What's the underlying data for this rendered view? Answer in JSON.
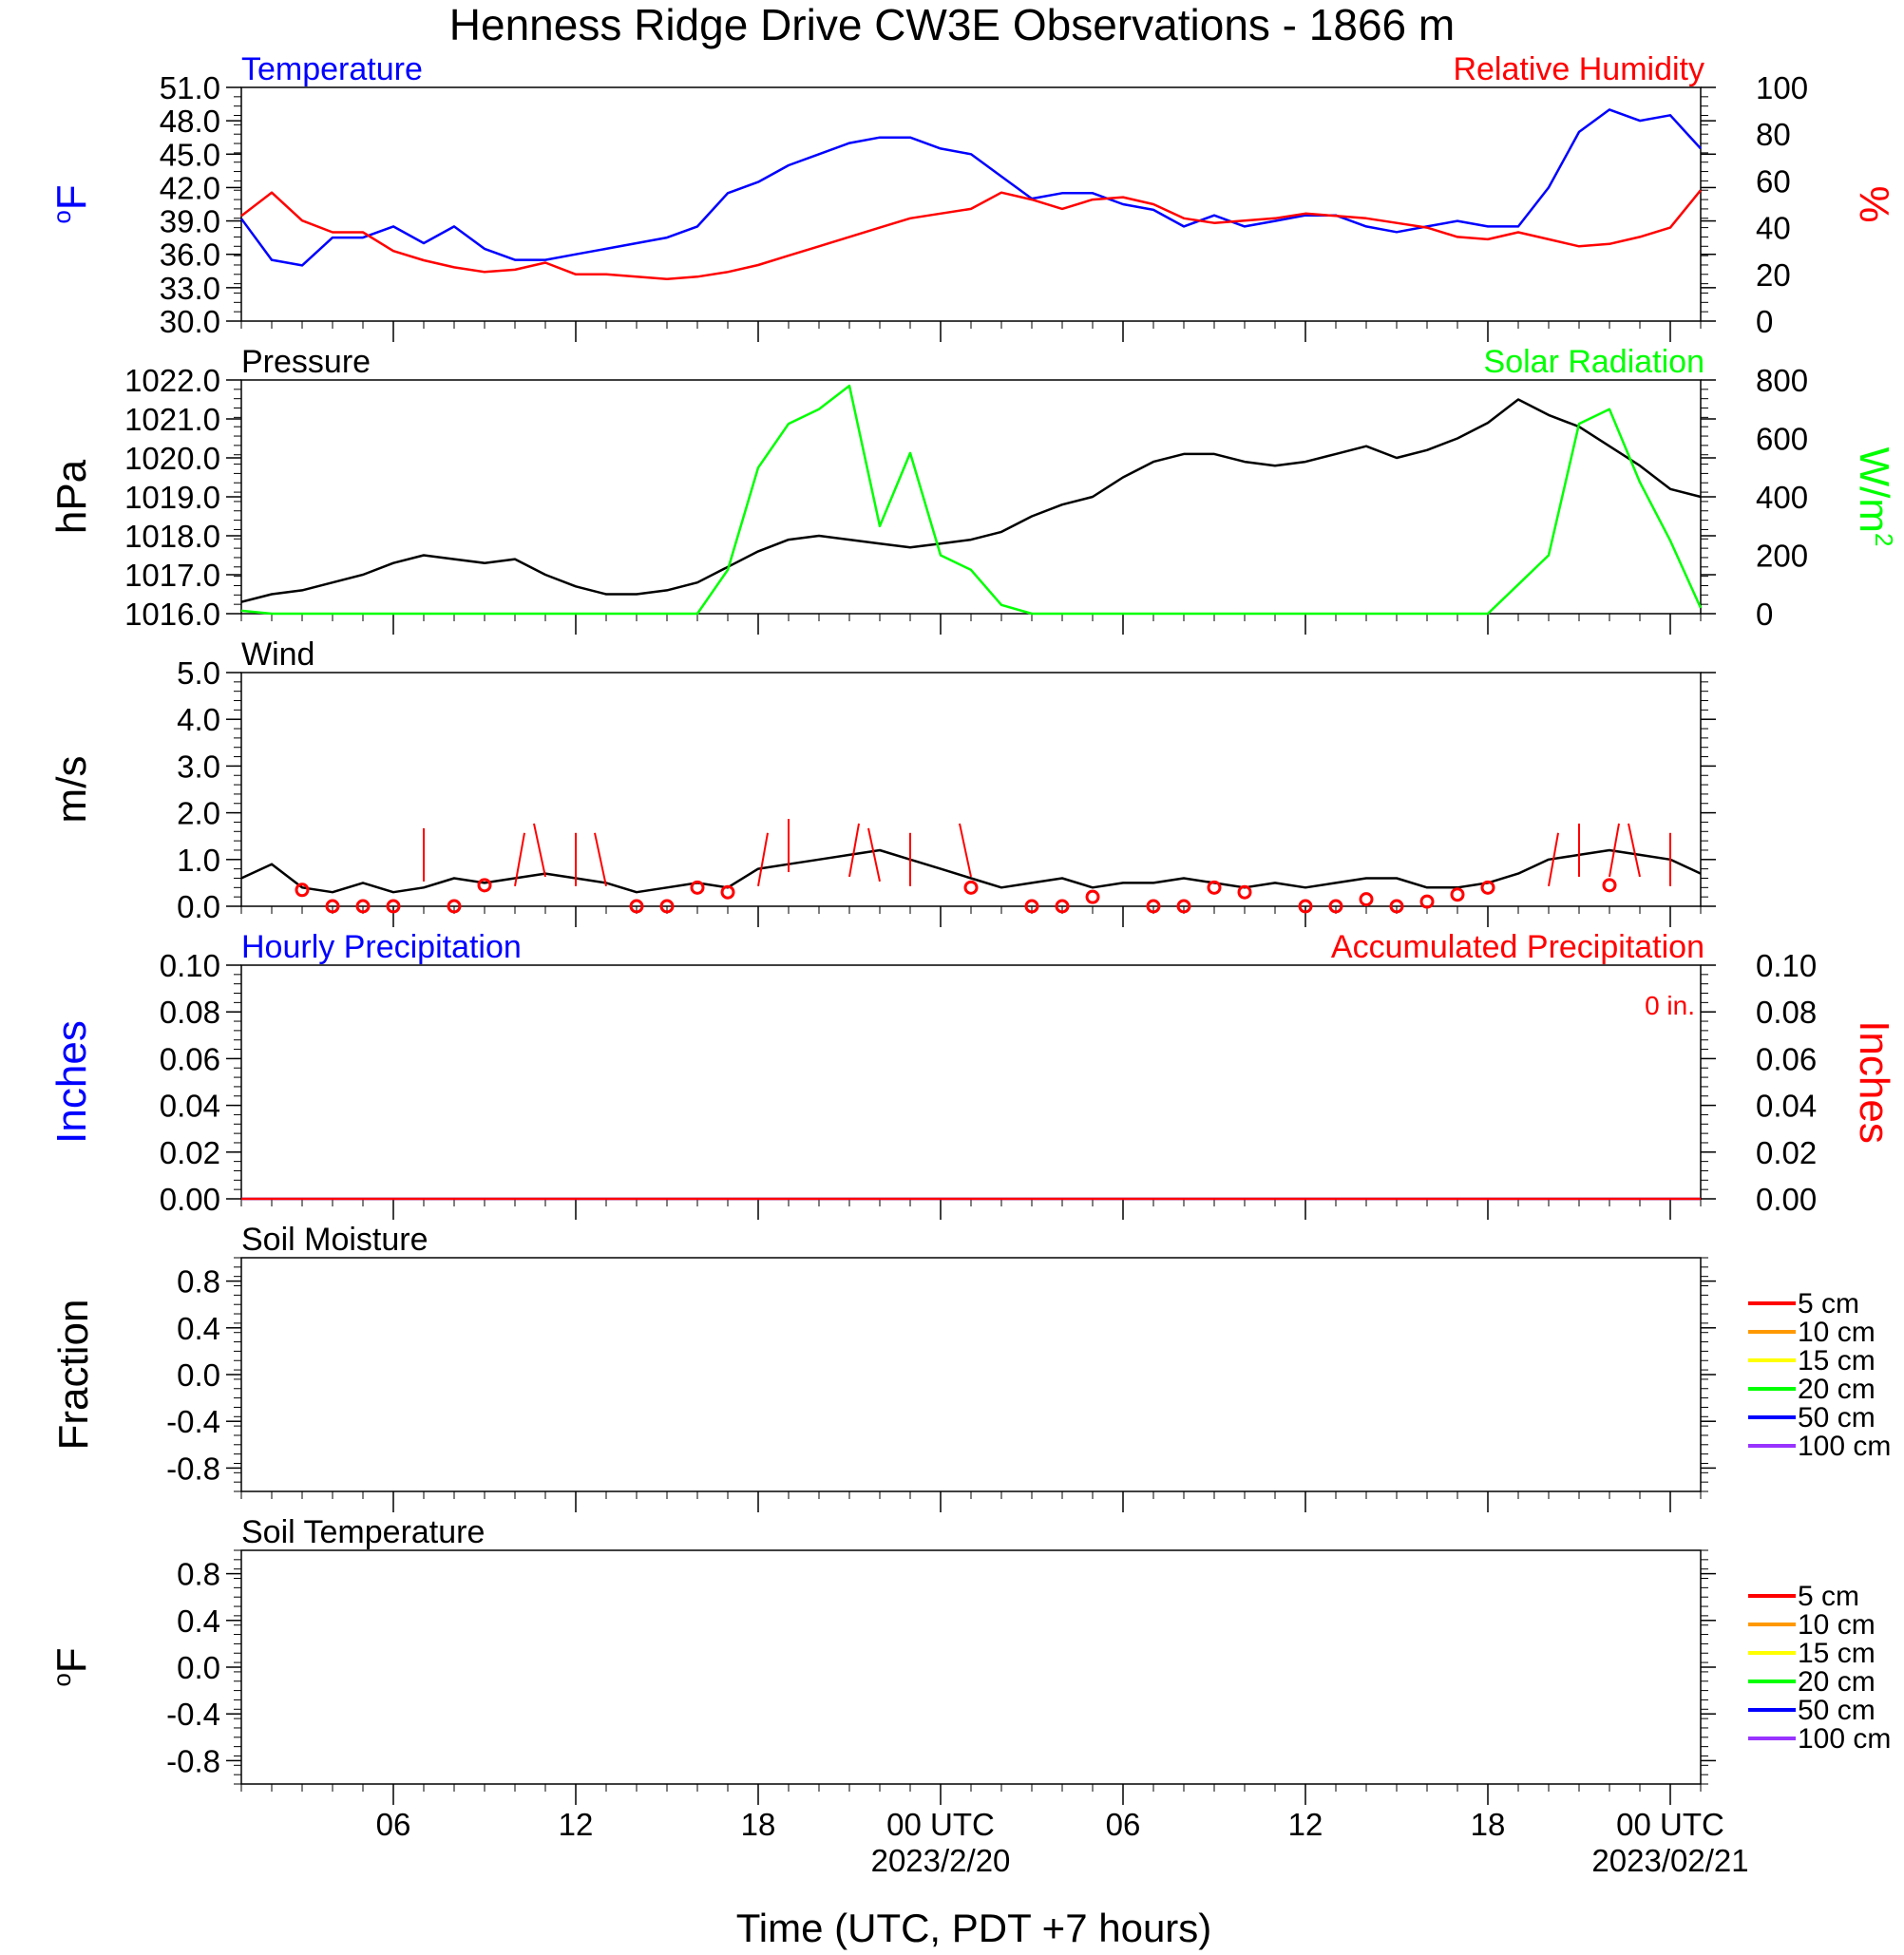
{
  "title": "Henness Ridge Drive CW3E Observations - 1866 m",
  "xlabel": "Time (UTC, PDT +7 hours)",
  "x_ticks": [
    "06",
    "12",
    "18",
    "00 UTC",
    "06",
    "12",
    "18",
    "00 UTC"
  ],
  "x_dates": [
    "2023/2/20",
    "2023/02/21"
  ],
  "colors": {
    "black": "#000000",
    "blue": "#0000ff",
    "red": "#ff0000",
    "green": "#00ff00",
    "orange": "#ff9900",
    "yellow": "#ffff00",
    "purple": "#9933ff"
  },
  "chart_data": [
    {
      "type": "line",
      "name": "temperature-rh-panel",
      "left_title": "Temperature",
      "right_title": "Relative Humidity",
      "ylabel": "oF",
      "ylabel_right": "%",
      "ylim": [
        30,
        51
      ],
      "ylim_right": [
        0,
        100
      ],
      "yticks": [
        "51.0",
        "48.0",
        "45.0",
        "42.0",
        "39.0",
        "36.0",
        "33.0",
        "30.0"
      ],
      "yticks_right": [
        "100",
        "80",
        "60",
        "40",
        "20",
        "0"
      ],
      "x_hours": [
        1,
        2,
        3,
        4,
        5,
        6,
        7,
        8,
        9,
        10,
        11,
        12,
        13,
        14,
        15,
        16,
        17,
        18,
        19,
        20,
        21,
        22,
        23,
        24,
        25,
        26,
        27,
        28,
        29,
        30,
        31,
        32,
        33,
        34,
        35,
        36,
        37,
        38,
        39,
        40,
        41,
        42,
        43,
        44,
        45,
        46,
        47,
        48,
        49
      ],
      "series": [
        {
          "name": "Temperature",
          "axis": "left",
          "color": "blue",
          "values": [
            39.2,
            35.5,
            35.0,
            37.5,
            37.5,
            38.5,
            37.0,
            38.5,
            36.5,
            35.5,
            35.5,
            36.0,
            36.5,
            37.0,
            37.5,
            38.5,
            41.5,
            42.5,
            44.0,
            45.0,
            46.0,
            46.5,
            46.5,
            45.5,
            45.0,
            43.0,
            41.0,
            41.5,
            41.5,
            40.5,
            40.0,
            38.5,
            39.5,
            38.5,
            39.0,
            39.5,
            39.5,
            38.5,
            38.0,
            38.5,
            39.0,
            38.5,
            38.5,
            42.0,
            47.0,
            49.0,
            48.0,
            48.5,
            45.5
          ]
        },
        {
          "name": "Relative Humidity",
          "axis": "right",
          "color": "red",
          "values": [
            45,
            55,
            43,
            38,
            38,
            30,
            26,
            23,
            21,
            22,
            25,
            20,
            20,
            19,
            18,
            19,
            21,
            24,
            28,
            32,
            36,
            40,
            44,
            46,
            48,
            55,
            52,
            48,
            52,
            53,
            50,
            44,
            42,
            43,
            44,
            46,
            45,
            44,
            42,
            40,
            36,
            35,
            38,
            35,
            32,
            33,
            36,
            40,
            56
          ]
        }
      ]
    },
    {
      "type": "line",
      "name": "pressure-solar-panel",
      "left_title": "Pressure",
      "right_title": "Solar Radiation",
      "ylabel": "hPa",
      "ylabel_right": "W/m2",
      "ylim": [
        1016,
        1022
      ],
      "ylim_right": [
        0,
        800
      ],
      "yticks": [
        "1022.0",
        "1021.0",
        "1020.0",
        "1019.0",
        "1018.0",
        "1017.0",
        "1016.0"
      ],
      "yticks_right": [
        "800",
        "600",
        "400",
        "200",
        "0"
      ],
      "x_hours": [
        1,
        2,
        3,
        4,
        5,
        6,
        7,
        8,
        9,
        10,
        11,
        12,
        13,
        14,
        15,
        16,
        17,
        18,
        19,
        20,
        21,
        22,
        23,
        24,
        25,
        26,
        27,
        28,
        29,
        30,
        31,
        32,
        33,
        34,
        35,
        36,
        37,
        38,
        39,
        40,
        41,
        42,
        43,
        44,
        45,
        46,
        47,
        48,
        49
      ],
      "series": [
        {
          "name": "Pressure",
          "axis": "left",
          "color": "black",
          "values": [
            1016.3,
            1016.5,
            1016.6,
            1016.8,
            1017.0,
            1017.3,
            1017.5,
            1017.4,
            1017.3,
            1017.4,
            1017.0,
            1016.7,
            1016.5,
            1016.5,
            1016.6,
            1016.8,
            1017.2,
            1017.6,
            1017.9,
            1018.0,
            1017.9,
            1017.8,
            1017.7,
            1017.8,
            1017.9,
            1018.1,
            1018.5,
            1018.8,
            1019.0,
            1019.5,
            1019.9,
            1020.1,
            1020.1,
            1019.9,
            1019.8,
            1019.9,
            1020.1,
            1020.3,
            1020.0,
            1020.2,
            1020.5,
            1020.9,
            1021.5,
            1021.1,
            1020.8,
            1020.3,
            1019.8,
            1019.2,
            1019.0
          ]
        },
        {
          "name": "Solar Radiation",
          "axis": "right",
          "color": "green",
          "values": [
            10,
            0,
            0,
            0,
            0,
            0,
            0,
            0,
            0,
            0,
            0,
            0,
            0,
            0,
            0,
            0,
            150,
            500,
            650,
            700,
            780,
            300,
            550,
            200,
            150,
            30,
            0,
            0,
            0,
            0,
            0,
            0,
            0,
            0,
            0,
            0,
            0,
            0,
            0,
            0,
            0,
            0,
            100,
            200,
            650,
            700,
            450,
            250,
            20
          ]
        }
      ]
    },
    {
      "type": "line",
      "name": "wind-panel",
      "left_title": "Wind",
      "ylabel": "m/s",
      "ylim": [
        0,
        5
      ],
      "yticks": [
        "5.0",
        "4.0",
        "3.0",
        "2.0",
        "1.0",
        "0.0"
      ],
      "x_hours": [
        1,
        2,
        3,
        4,
        5,
        6,
        7,
        8,
        9,
        10,
        11,
        12,
        13,
        14,
        15,
        16,
        17,
        18,
        19,
        20,
        21,
        22,
        23,
        24,
        25,
        26,
        27,
        28,
        29,
        30,
        31,
        32,
        33,
        34,
        35,
        36,
        37,
        38,
        39,
        40,
        41,
        42,
        43,
        44,
        45,
        46,
        47,
        48,
        49
      ],
      "series": [
        {
          "name": "Wind Speed",
          "color": "black",
          "values": [
            0.6,
            0.9,
            0.4,
            0.3,
            0.5,
            0.3,
            0.4,
            0.6,
            0.5,
            0.6,
            0.7,
            0.6,
            0.5,
            0.3,
            0.4,
            0.5,
            0.4,
            0.8,
            0.9,
            1.0,
            1.1,
            1.2,
            1.0,
            0.8,
            0.6,
            0.4,
            0.5,
            0.6,
            0.4,
            0.5,
            0.5,
            0.6,
            0.5,
            0.4,
            0.5,
            0.4,
            0.5,
            0.6,
            0.6,
            0.4,
            0.4,
            0.5,
            0.7,
            1.0,
            1.1,
            1.2,
            1.1,
            1.0,
            0.7
          ]
        }
      ],
      "calm_markers": {
        "color": "red",
        "hours": [
          3,
          4,
          5,
          6,
          8,
          9,
          14,
          15,
          16,
          17,
          25,
          27,
          28,
          29,
          31,
          32,
          33,
          34,
          36,
          37,
          38,
          39,
          40,
          41,
          42,
          46
        ],
        "values": [
          0.35,
          0.0,
          0.0,
          0.0,
          0.0,
          0.45,
          0.0,
          0.0,
          0.4,
          0.3,
          0.4,
          0.0,
          0.0,
          0.2,
          0.0,
          0.0,
          0.4,
          0.3,
          0.0,
          0.0,
          0.15,
          0.0,
          0.1,
          0.25,
          0.4,
          0.45
        ]
      },
      "wind_barbs": {
        "color": "red",
        "hours": [
          7,
          10,
          11,
          12,
          13,
          18,
          19,
          21,
          22,
          23,
          25,
          44,
          45,
          46,
          47,
          48
        ],
        "values": [
          1.1,
          1.0,
          1.2,
          1.0,
          1.0,
          1.0,
          1.3,
          1.2,
          1.1,
          1.0,
          1.2,
          1.0,
          1.2,
          1.2,
          1.2,
          1.0
        ]
      }
    },
    {
      "type": "line",
      "name": "precipitation-panel",
      "left_title": "Hourly Precipitation",
      "right_title": "Accumulated Precipitation",
      "annotation": "0 in.",
      "ylabel": "Inches",
      "ylabel_right": "Inches",
      "ylim": [
        0,
        0.1
      ],
      "ylim_right": [
        0,
        0.1
      ],
      "yticks": [
        "0.10",
        "0.08",
        "0.06",
        "0.04",
        "0.02",
        "0.00"
      ],
      "yticks_right": [
        "0.10",
        "0.08",
        "0.06",
        "0.04",
        "0.02",
        "0.00"
      ],
      "series": [
        {
          "name": "Hourly Precipitation",
          "color": "blue",
          "values": [
            0,
            0
          ]
        },
        {
          "name": "Accumulated Precipitation",
          "color": "red",
          "values": [
            0,
            0
          ]
        }
      ]
    },
    {
      "type": "line",
      "name": "soil-moisture-panel",
      "left_title": "Soil Moisture",
      "ylabel": "Fraction",
      "ylim": [
        -1,
        1
      ],
      "yticks": [
        "0.8",
        "0.4",
        "0.0",
        "-0.4",
        "-0.8"
      ],
      "legend": [
        {
          "label": "5 cm",
          "color": "red"
        },
        {
          "label": "10 cm",
          "color": "orange"
        },
        {
          "label": "15 cm",
          "color": "yellow"
        },
        {
          "label": "20 cm",
          "color": "green"
        },
        {
          "label": "50 cm",
          "color": "blue"
        },
        {
          "label": "100 cm",
          "color": "purple"
        }
      ],
      "series": []
    },
    {
      "type": "line",
      "name": "soil-temperature-panel",
      "left_title": "Soil Temperature",
      "ylabel": "oF",
      "ylim": [
        -1,
        1
      ],
      "yticks": [
        "0.8",
        "0.4",
        "0.0",
        "-0.4",
        "-0.8"
      ],
      "legend": [
        {
          "label": "5 cm",
          "color": "red"
        },
        {
          "label": "10 cm",
          "color": "orange"
        },
        {
          "label": "15 cm",
          "color": "yellow"
        },
        {
          "label": "20 cm",
          "color": "green"
        },
        {
          "label": "50 cm",
          "color": "blue"
        },
        {
          "label": "100 cm",
          "color": "purple"
        }
      ],
      "series": []
    }
  ]
}
